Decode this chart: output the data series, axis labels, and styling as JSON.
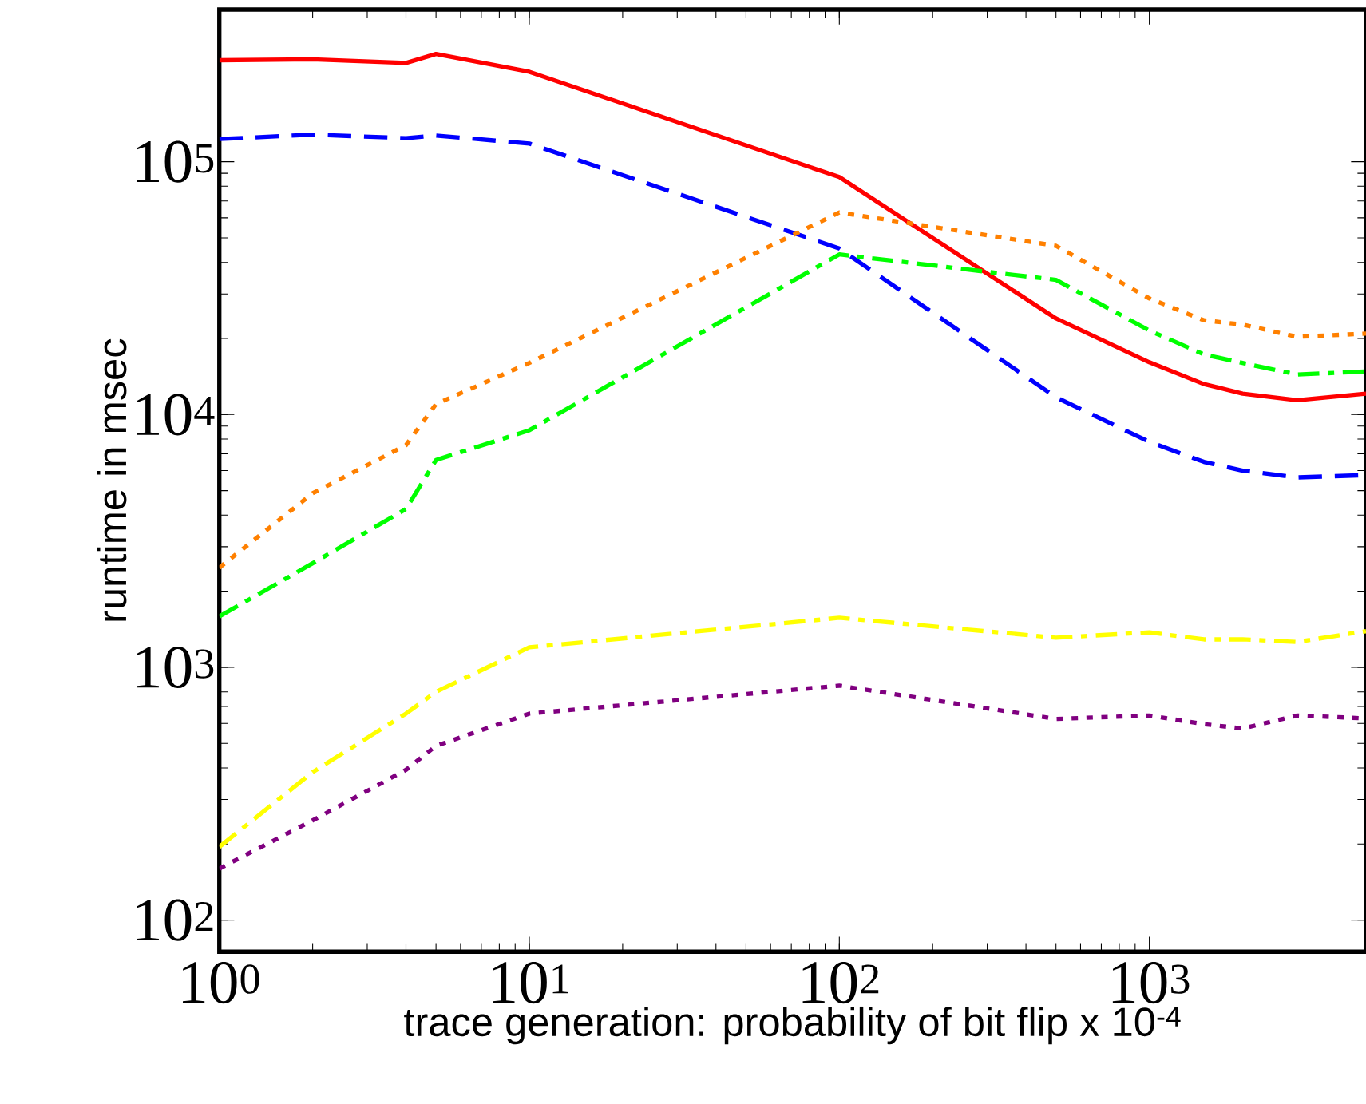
{
  "chart_data": {
    "type": "line",
    "xlabel": "trace generation: probability of bit flip x 10$^{-4}$",
    "ylabel": "runtime in msec",
    "log": "xy",
    "grid": false,
    "x": [
      1,
      2,
      4,
      5,
      10,
      100,
      500,
      1000,
      1500,
      2000,
      3000,
      5000
    ],
    "xlim": [
      1,
      5000
    ],
    "ylim": [
      75,
      400000
    ],
    "xticks": [
      {
        "value": 1,
        "label": "10$^{0}$"
      },
      {
        "value": 10,
        "label": "10$^{1}$"
      },
      {
        "value": 100,
        "label": "10$^{2}$"
      },
      {
        "value": 1000,
        "label": "10$^{3}$"
      }
    ],
    "yticks": [
      {
        "value": 100,
        "label": "10$^{2}$"
      },
      {
        "value": 1000,
        "label": "10$^{3}$"
      },
      {
        "value": 10000,
        "label": "10$^{4}$"
      },
      {
        "value": 100000,
        "label": "10$^{5}$"
      }
    ],
    "series": [
      {
        "color": "#ff0000",
        "line_style": "solid",
        "values": [
          252000,
          254000,
          246000,
          267000,
          227000,
          87000,
          24000,
          16100,
          13200,
          12100,
          11400,
          12100
        ]
      },
      {
        "color": "#0000ff",
        "line_style": "dashed",
        "values": [
          123000,
          128000,
          124000,
          127000,
          118000,
          45400,
          11700,
          7800,
          6500,
          6000,
          5640,
          5760
        ]
      },
      {
        "color": "#ff8000",
        "line_style": "dotted",
        "values": [
          2480,
          4880,
          7570,
          11000,
          16000,
          63000,
          46500,
          28800,
          23600,
          22700,
          20300,
          20900
        ]
      },
      {
        "color": "#00ff00",
        "line_style": "dashdot",
        "values": [
          1590,
          2580,
          4230,
          6610,
          8670,
          43000,
          34100,
          21500,
          17300,
          16000,
          14400,
          14800
        ]
      },
      {
        "color": "#ffff00",
        "line_style": "dashdot",
        "values": [
          195,
          385,
          656,
          800,
          1200,
          1570,
          1310,
          1375,
          1290,
          1290,
          1260,
          1390
        ]
      },
      {
        "color": "#800080",
        "line_style": "dotted",
        "values": [
          160,
          248,
          393,
          489,
          656,
          846,
          625,
          645,
          596,
          573,
          645,
          628
        ]
      }
    ]
  }
}
